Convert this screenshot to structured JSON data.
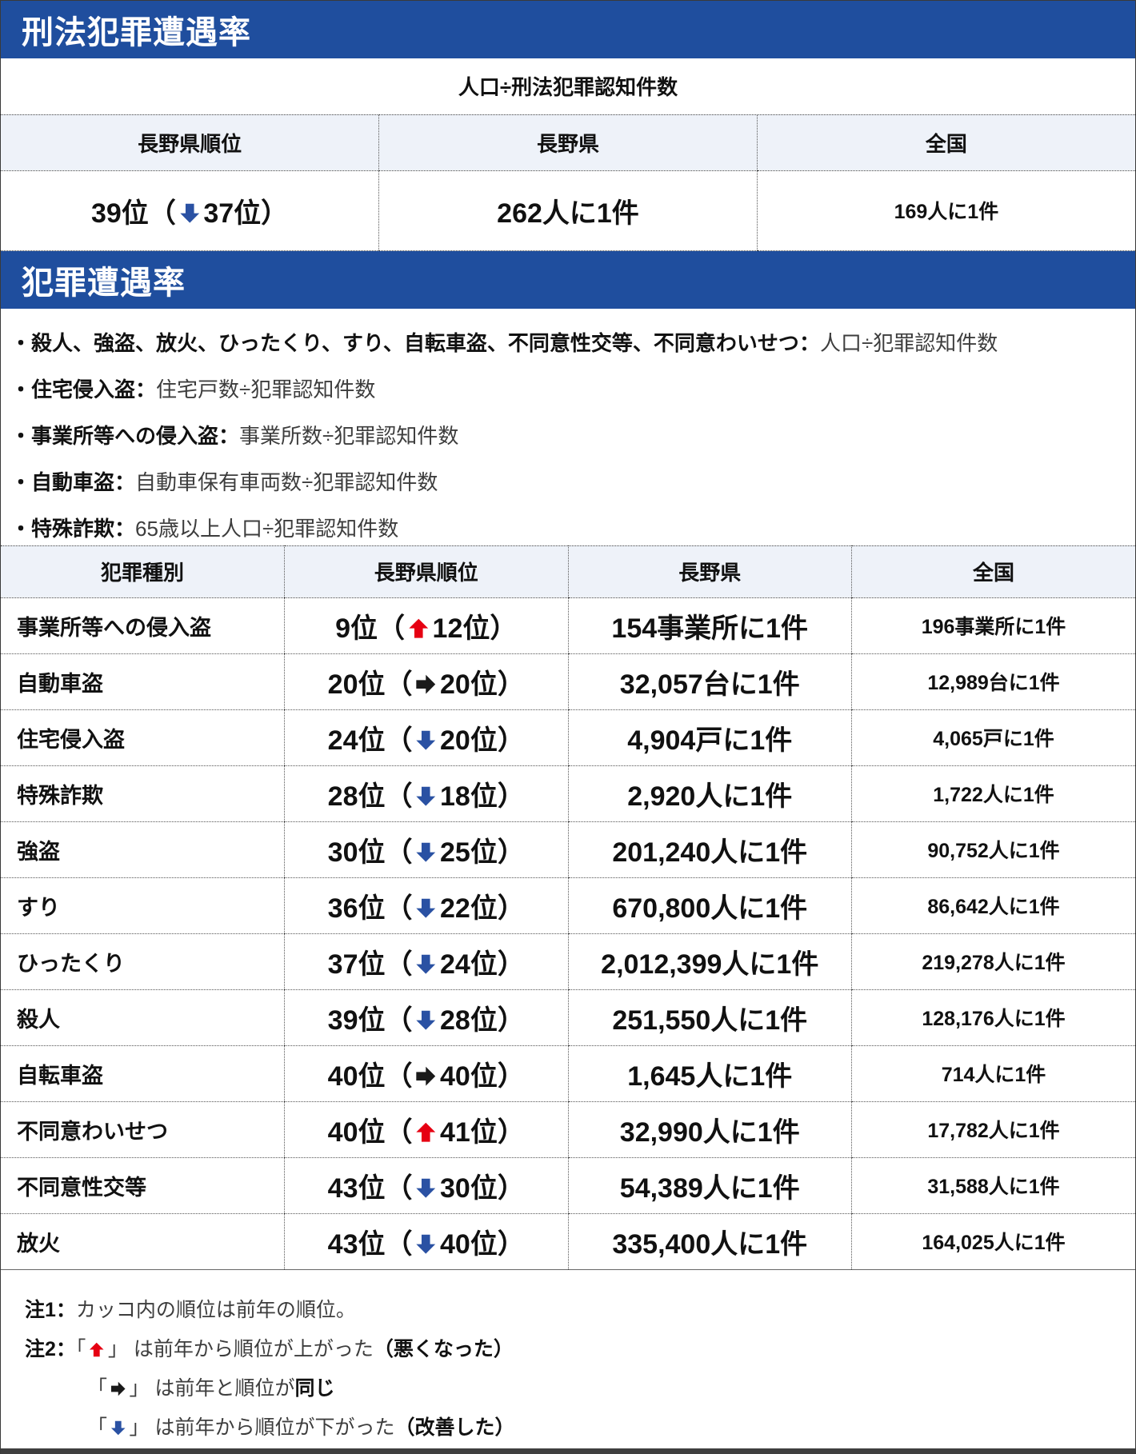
{
  "colors": {
    "header_blue": "#1f4e9e",
    "table_head_bg": "#eef2f9",
    "arrow_up": "#e60012",
    "arrow_down": "#2a51a3",
    "arrow_same": "#1a1a1a"
  },
  "symbols": {
    "bullet": "・",
    "colon": "：",
    "paren_open": "（",
    "paren_close": "）",
    "bracket_open": "「",
    "bracket_close": "」"
  },
  "section1": {
    "title": "刑法犯罪遭遇率",
    "formula": "人口÷刑法犯罪認知件数",
    "columns": [
      "長野県順位",
      "長野県",
      "全国"
    ],
    "row": {
      "rank": "39位",
      "arrow": "down",
      "prev": "37位",
      "nagano": "262人に1件",
      "national": "169人に1件"
    }
  },
  "section2": {
    "title": "犯罪遭遇率",
    "bullets": [
      {
        "label": "殺人、強盗、放火、ひったくり、すり、自転車盗、不同意性交等、不同意わいせつ",
        "formula": "人口÷犯罪認知件数"
      },
      {
        "label": "住宅侵入盗",
        "formula": "住宅戸数÷犯罪認知件数"
      },
      {
        "label": "事業所等への侵入盗",
        "formula": "事業所数÷犯罪認知件数"
      },
      {
        "label": "自動車盗",
        "formula": "自動車保有車両数÷犯罪認知件数"
      },
      {
        "label": "特殊詐欺",
        "formula": "65歳以上人口÷犯罪認知件数"
      }
    ]
  },
  "main": {
    "columns": [
      "犯罪種別",
      "長野県順位",
      "長野県",
      "全国"
    ],
    "rows": [
      {
        "type": "事業所等への侵入盗",
        "rank": "9位",
        "arrow": "up",
        "prev": "12位",
        "nagano": "154事業所に1件",
        "national": "196事業所に1件"
      },
      {
        "type": "自動車盗",
        "rank": "20位",
        "arrow": "same",
        "prev": "20位",
        "nagano": "32,057台に1件",
        "national": "12,989台に1件"
      },
      {
        "type": "住宅侵入盗",
        "rank": "24位",
        "arrow": "down",
        "prev": "20位",
        "nagano": "4,904戸に1件",
        "national": "4,065戸に1件"
      },
      {
        "type": "特殊詐欺",
        "rank": "28位",
        "arrow": "down",
        "prev": "18位",
        "nagano": "2,920人に1件",
        "national": "1,722人に1件"
      },
      {
        "type": "強盗",
        "rank": "30位",
        "arrow": "down",
        "prev": "25位",
        "nagano": "201,240人に1件",
        "national": "90,752人に1件"
      },
      {
        "type": "すり",
        "rank": "36位",
        "arrow": "down",
        "prev": "22位",
        "nagano": "670,800人に1件",
        "national": "86,642人に1件"
      },
      {
        "type": "ひったくり",
        "rank": "37位",
        "arrow": "down",
        "prev": "24位",
        "nagano": "2,012,399人に1件",
        "national": "219,278人に1件"
      },
      {
        "type": "殺人",
        "rank": "39位",
        "arrow": "down",
        "prev": "28位",
        "nagano": "251,550人に1件",
        "national": "128,176人に1件"
      },
      {
        "type": "自転車盗",
        "rank": "40位",
        "arrow": "same",
        "prev": "40位",
        "nagano": "1,645人に1件",
        "national": "714人に1件"
      },
      {
        "type": "不同意わいせつ",
        "rank": "40位",
        "arrow": "up",
        "prev": "41位",
        "nagano": "32,990人に1件",
        "national": "17,782人に1件"
      },
      {
        "type": "不同意性交等",
        "rank": "43位",
        "arrow": "down",
        "prev": "30位",
        "nagano": "54,389人に1件",
        "national": "31,588人に1件"
      },
      {
        "type": "放火",
        "rank": "43位",
        "arrow": "down",
        "prev": "40位",
        "nagano": "335,400人に1件",
        "national": "164,025人に1件"
      }
    ]
  },
  "notes": {
    "n1_label": "注1：",
    "n1_text": "カッコ内の順位は前年の順位。",
    "n2_label": "注2：",
    "n2_arrow": "up",
    "n2_text": "は前年から順位が上がった",
    "n2_emph": "（悪くなった）",
    "n3_arrow": "same",
    "n3_text": "は前年と順位が",
    "n3_emph": "同じ",
    "n4_arrow": "down",
    "n4_text": "は前年から順位が下がった",
    "n4_emph": "（改善した）"
  }
}
